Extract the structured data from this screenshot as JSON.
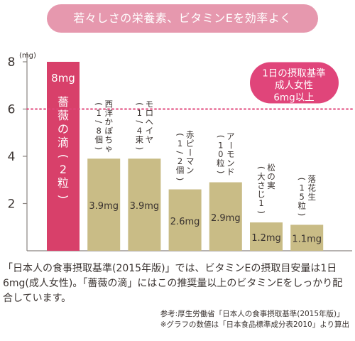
{
  "banner": {
    "text": "若々しさの栄養素、ビタミンEを効率よく"
  },
  "chart_data": {
    "type": "bar",
    "unit": "mg",
    "y_unit_label": "(mg)",
    "y_ticks": [
      "8",
      "6",
      "4",
      "2"
    ],
    "ylim": [
      0,
      8
    ],
    "grid": false,
    "categories": [
      "薔薇の滴(2粒)",
      "西洋かぼちゃ(1/8個)",
      "モロヘイヤ(1/4束)",
      "赤ピーマン(1/2個)",
      "アーモンド(10粒)",
      "松の実(大さじ1)",
      "落花生(15粒)"
    ],
    "values": [
      8,
      3.9,
      3.9,
      2.6,
      2.9,
      1.2,
      1.1
    ],
    "value_labels": [
      "8mg",
      "3.9mg",
      "3.9mg",
      "2.6mg",
      "2.9mg",
      "1.2mg",
      "1.1mg"
    ],
    "bar_names": [
      "薔薇の滴",
      "西洋かぼちゃ",
      "モロヘイヤ",
      "赤ピーマン",
      "アーモンド",
      "松の実",
      "落花生"
    ],
    "bar_amounts": [
      "2粒",
      "1/8個",
      "1/4束",
      "1/2個",
      "10粒",
      "大さじ1",
      "15粒"
    ],
    "reference_line": {
      "value": 6,
      "label_lines": [
        "1日の摂取基準",
        "成人女性",
        "6mg以上"
      ]
    },
    "colors": {
      "highlight": "#d8406a",
      "bar": "#c9bc86",
      "reference": "#e0457a",
      "axis": "#8a8480"
    }
  },
  "body_text": "「日本人の食事摂取基準(2015年版)」では、ビタミンEの摂取目安量は1日6mg(成人女性)。「薔薇の滴」にはこの推奨量以上のビタミンEをしっかり配合しています。",
  "notes": [
    "参考:厚生労働省「日本人の食事摂取基準(2015年版)」",
    "※グラフの数値は「日本食品標準成分表2010」より算出"
  ]
}
